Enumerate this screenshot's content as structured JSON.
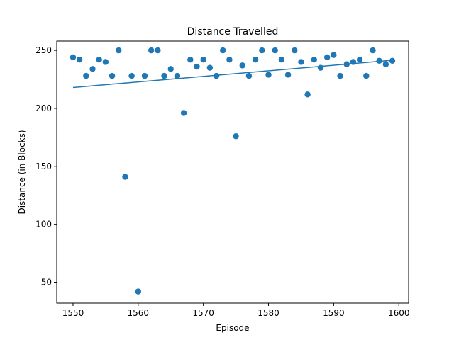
{
  "chart_data": {
    "type": "scatter",
    "title": "Distance Travelled",
    "xlabel": "Episode",
    "ylabel": "Distance (in Blocks)",
    "xlim": [
      1547.5,
      1601.5
    ],
    "ylim": [
      32,
      258
    ],
    "xticks": [
      1550,
      1560,
      1570,
      1580,
      1590,
      1600
    ],
    "yticks": [
      50,
      100,
      150,
      200,
      250
    ],
    "grid": false,
    "marker_color": "#1f77b4",
    "line_color": "#1f77b4",
    "series": [
      {
        "type": "scatter",
        "x": [
          1550,
          1551,
          1552,
          1553,
          1554,
          1555,
          1556,
          1557,
          1558,
          1559,
          1560,
          1561,
          1562,
          1563,
          1564,
          1565,
          1566,
          1567,
          1568,
          1569,
          1570,
          1571,
          1572,
          1573,
          1574,
          1575,
          1576,
          1577,
          1578,
          1579,
          1580,
          1581,
          1582,
          1583,
          1584,
          1585,
          1586,
          1587,
          1588,
          1589,
          1590,
          1591,
          1592,
          1593,
          1594,
          1595,
          1596,
          1597,
          1598,
          1599
        ],
        "y": [
          244,
          242,
          228,
          234,
          242,
          240,
          228,
          250,
          141,
          228,
          42,
          228,
          250,
          250,
          228,
          234,
          228,
          196,
          242,
          236,
          242,
          235,
          228,
          250,
          242,
          176,
          237,
          228,
          242,
          250,
          229,
          250,
          242,
          229,
          250,
          240,
          212,
          242,
          235,
          244,
          246,
          228,
          238,
          240,
          242,
          228,
          250,
          241,
          238,
          241
        ]
      },
      {
        "type": "line",
        "x": [
          1550,
          1599
        ],
        "y": [
          218,
          241.5
        ]
      }
    ]
  }
}
